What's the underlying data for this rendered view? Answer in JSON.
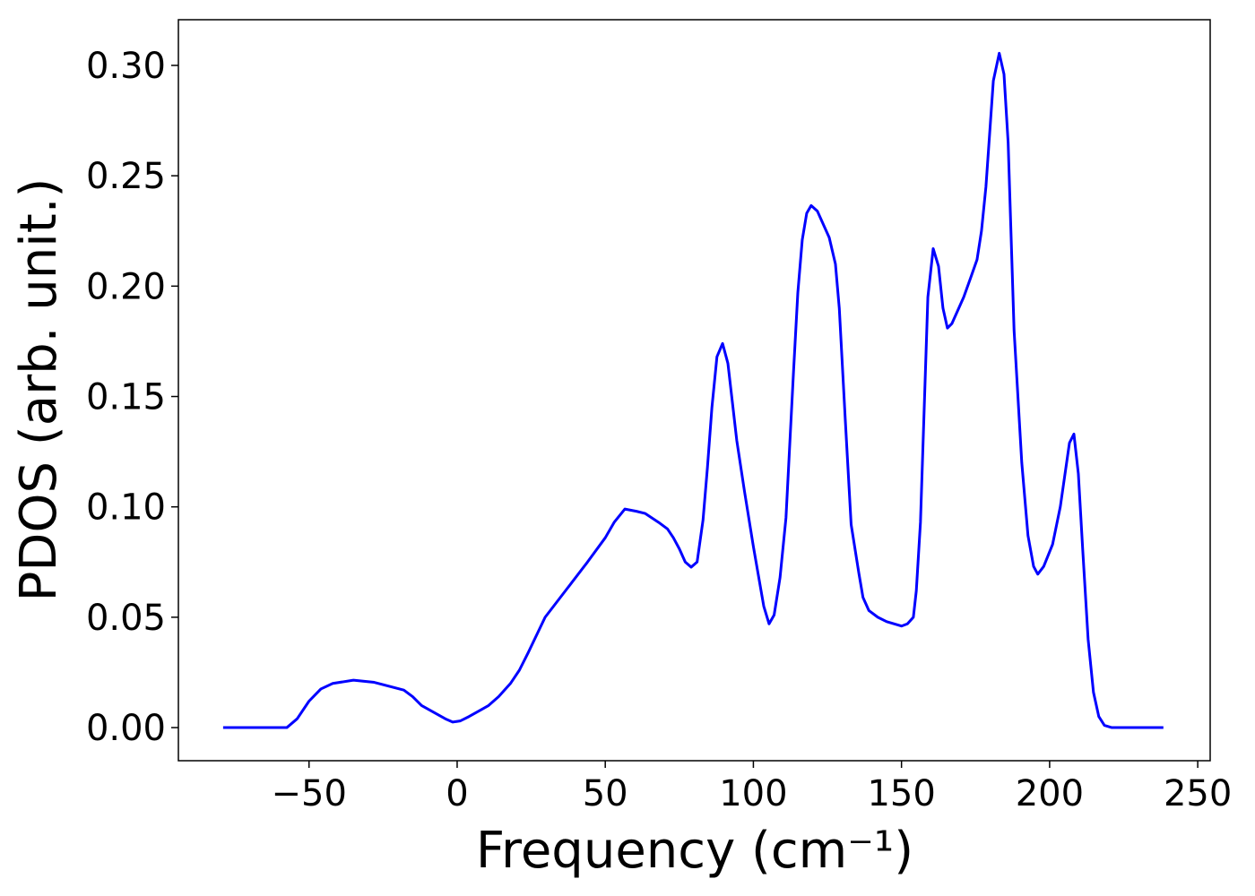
{
  "chart_data": {
    "type": "line",
    "xlabel": "Frequency (cm⁻¹)",
    "ylabel": "PDOS (arb. unit.)",
    "x": [
      -79,
      -57.5,
      -54,
      -50,
      -46,
      -42,
      -35,
      -28,
      -18,
      -15,
      -12,
      -8,
      -4,
      -1.5,
      1,
      4,
      8,
      10.6,
      14,
      18,
      21,
      24,
      29.7,
      36,
      44,
      50,
      53,
      56.6,
      60.5,
      63.5,
      68,
      71,
      73,
      75,
      77,
      79,
      81,
      83,
      84.5,
      86,
      87.7,
      89.6,
      91.4,
      94.4,
      97,
      100,
      103.5,
      105.3,
      107,
      109,
      111,
      113.5,
      115,
      116.5,
      118,
      119.5,
      121.6,
      125.6,
      127.7,
      129,
      131,
      133,
      135.6,
      137,
      139,
      142,
      145,
      150,
      152,
      154,
      155,
      156.4,
      158.9,
      160.7,
      162.5,
      164,
      165.5,
      167,
      171,
      173.4,
      175.5,
      177,
      178.5,
      181,
      183,
      184.6,
      186,
      188,
      190.6,
      192.7,
      194.6,
      196,
      198,
      201,
      203.6,
      206.7,
      208.2,
      209.7,
      211.2,
      213,
      214.8,
      216.6,
      218.5,
      221,
      238.4
    ],
    "series": [
      {
        "name": "PDOS",
        "color": "#0000ff",
        "values": [
          0,
          0,
          0.004,
          0.012,
          0.0175,
          0.02,
          0.0215,
          0.0205,
          0.017,
          0.014,
          0.01,
          0.007,
          0.004,
          0.0025,
          0.003,
          0.005,
          0.008,
          0.01,
          0.014,
          0.02,
          0.026,
          0.034,
          0.05,
          0.061,
          0.075,
          0.086,
          0.093,
          0.099,
          0.098,
          0.097,
          0.093,
          0.09,
          0.086,
          0.081,
          0.075,
          0.0727,
          0.075,
          0.094,
          0.118,
          0.145,
          0.168,
          0.174,
          0.165,
          0.13,
          0.107,
          0.082,
          0.055,
          0.047,
          0.051,
          0.068,
          0.095,
          0.16,
          0.197,
          0.221,
          0.233,
          0.2365,
          0.234,
          0.222,
          0.21,
          0.19,
          0.14,
          0.092,
          0.07,
          0.059,
          0.053,
          0.05,
          0.048,
          0.046,
          0.047,
          0.05,
          0.062,
          0.093,
          0.195,
          0.217,
          0.209,
          0.19,
          0.181,
          0.183,
          0.195,
          0.204,
          0.212,
          0.225,
          0.245,
          0.293,
          0.3055,
          0.296,
          0.265,
          0.18,
          0.12,
          0.087,
          0.073,
          0.0695,
          0.073,
          0.083,
          0.1,
          0.129,
          0.133,
          0.115,
          0.08,
          0.04,
          0.016,
          0.005,
          0.001,
          0,
          0
        ]
      }
    ],
    "xlim": [
      -94.1,
      254.2
    ],
    "ylim": [
      -0.015,
      0.3207
    ],
    "xticks": [
      {
        "value": -50,
        "label": "−50"
      },
      0,
      50,
      100,
      150,
      200,
      250
    ],
    "yticks": [
      {
        "value": 0,
        "label": "0.00"
      },
      0.05,
      {
        "value": 0.1,
        "label": "0.10"
      },
      0.15,
      {
        "value": 0.2,
        "label": "0.20"
      },
      0.25,
      {
        "value": 0.3,
        "label": "0.30"
      }
    ],
    "grid": false
  }
}
